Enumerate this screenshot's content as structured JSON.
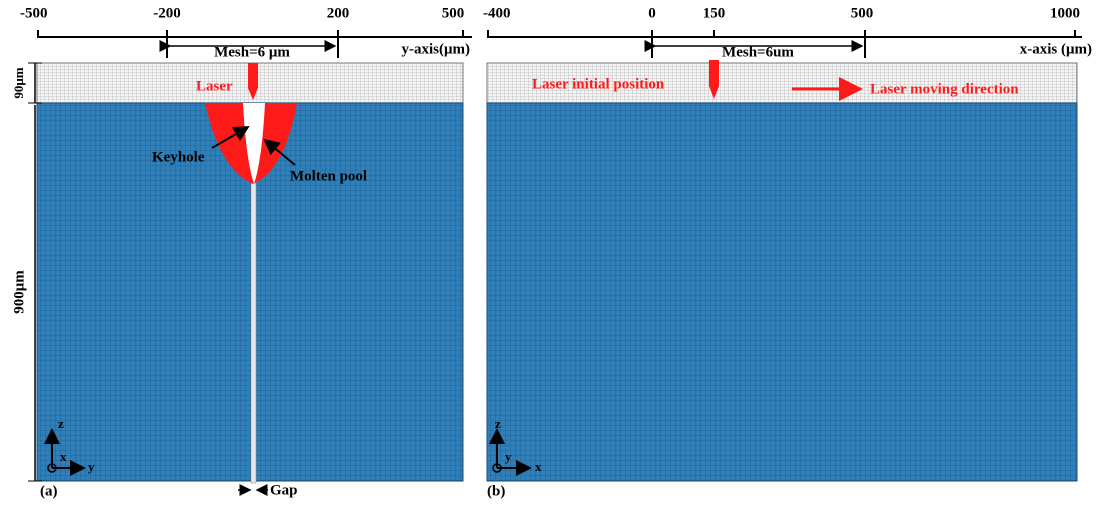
{
  "panel_a": {
    "axis_ticks": [
      "-500",
      "-200",
      "200",
      "500"
    ],
    "axis_label": "y-axis(μm)",
    "mesh_label": "Mesh=6 μm",
    "height_top": "90μm",
    "height_bottom": "900μm",
    "laser": "Laser",
    "keyhole": "Keyhole",
    "molten_pool": "Molten pool",
    "gap": "Gap",
    "tag": "(a)",
    "coord": [
      "z",
      "x",
      "y"
    ]
  },
  "panel_b": {
    "axis_ticks": [
      "-400",
      "0",
      "150",
      "500",
      "1000"
    ],
    "axis_label": "x-axis (μm)",
    "mesh_label": "Mesh=6um",
    "laser_start": "Laser initial position",
    "laser_direction": "Laser moving direction",
    "tag": "(b)",
    "coord": [
      "z",
      "y",
      "x"
    ]
  }
}
